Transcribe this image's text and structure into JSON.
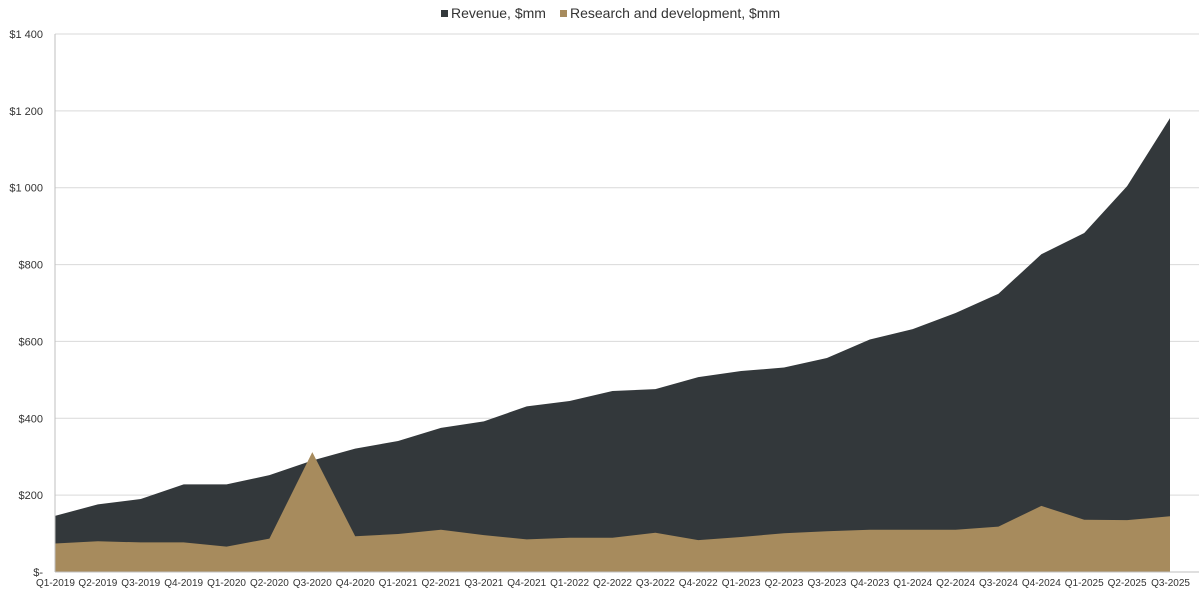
{
  "chart_data": {
    "type": "area",
    "stacked": false,
    "categories": [
      "Q1-2019",
      "Q2-2019",
      "Q3-2019",
      "Q4-2019",
      "Q1-2020",
      "Q2-2020",
      "Q3-2020",
      "Q4-2020",
      "Q1-2021",
      "Q2-2021",
      "Q3-2021",
      "Q4-2021",
      "Q1-2022",
      "Q2-2022",
      "Q3-2022",
      "Q4-2022",
      "Q1-2023",
      "Q2-2023",
      "Q3-2023",
      "Q4-2023",
      "Q1-2024",
      "Q2-2024",
      "Q3-2024",
      "Q4-2024",
      "Q1-2025",
      "Q2-2025",
      "Q3-2025"
    ],
    "series": [
      {
        "name": "Revenue, $mm",
        "color": "#33383b",
        "values": [
          146,
          176,
          190,
          228,
          228,
          252,
          290,
          321,
          341,
          375,
          392,
          431,
          445,
          471,
          476,
          507,
          523,
          532,
          557,
          605,
          632,
          674,
          724,
          827,
          882,
          1004,
          1181
        ]
      },
      {
        "name": "Research and development, $mm",
        "color": "#a78b5d",
        "values": [
          74,
          80,
          77,
          77,
          66,
          87,
          312,
          93,
          99,
          110,
          96,
          85,
          89,
          89,
          102,
          83,
          91,
          101,
          106,
          110,
          110,
          110,
          118,
          172,
          136,
          135,
          145
        ]
      }
    ],
    "ylim": [
      0,
      1400
    ],
    "yticks": [
      0,
      200,
      400,
      600,
      800,
      1000,
      1200,
      1400
    ],
    "ytick_labels": [
      "$-",
      "$200",
      "$400",
      "$600",
      "$800",
      "$1 000",
      "$1 200",
      "$1 400"
    ],
    "grid": true,
    "legend_position": "top-center"
  }
}
